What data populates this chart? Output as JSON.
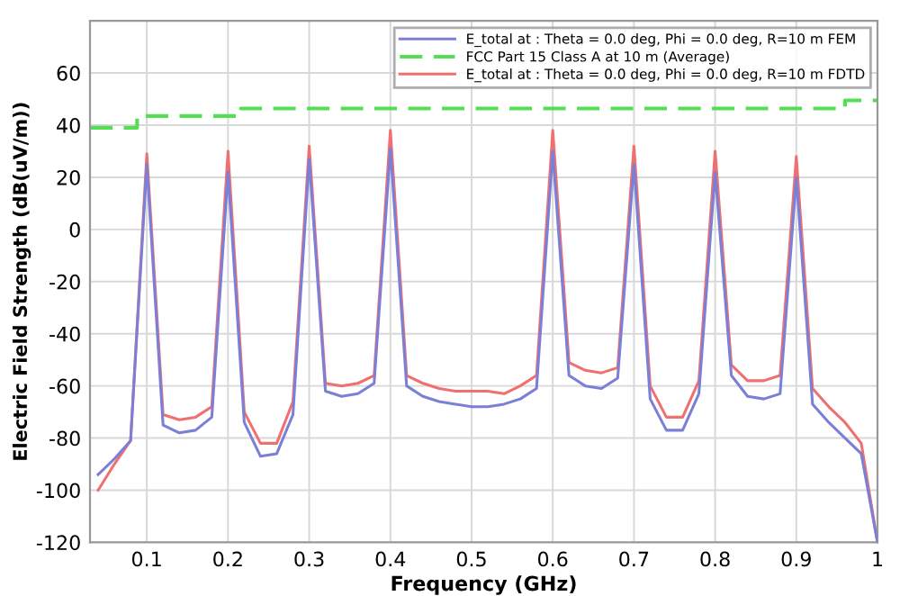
{
  "chart_data": {
    "type": "line",
    "xlabel": "Frequency (GHz)",
    "ylabel": "Electric Field Strength (dB(uV/m))",
    "xlim": [
      0.03,
      1.0
    ],
    "ylim": [
      -120,
      80
    ],
    "xticks": [
      0.1,
      0.2,
      0.3,
      0.4,
      0.5,
      0.6,
      0.7,
      0.8,
      0.9,
      {
        "value": 1.0,
        "label": "1"
      }
    ],
    "yticks": [
      -120,
      -100,
      -80,
      -60,
      -40,
      -20,
      0,
      20,
      40,
      60
    ],
    "grid": true,
    "legend": "top right",
    "marker": "none",
    "series": [
      {
        "name": "E_total at : Theta = 0.0 deg, Phi = 0.0 deg, R=10 m FEM",
        "color": "#7b7fd6",
        "line_style": "solid",
        "x": [
          0.04,
          0.06,
          0.08,
          0.1,
          0.12,
          0.14,
          0.16,
          0.18,
          0.2,
          0.22,
          0.24,
          0.26,
          0.28,
          0.3,
          0.32,
          0.34,
          0.36,
          0.38,
          0.4,
          0.42,
          0.44,
          0.46,
          0.48,
          0.5,
          0.52,
          0.54,
          0.56,
          0.58,
          0.6,
          0.62,
          0.64,
          0.66,
          0.68,
          0.7,
          0.72,
          0.74,
          0.76,
          0.78,
          0.8,
          0.82,
          0.84,
          0.86,
          0.88,
          0.9,
          0.92,
          0.94,
          0.96,
          0.98,
          1.0
        ],
        "values": [
          -94,
          -88,
          -81,
          25,
          -75,
          -78,
          -77,
          -72,
          22,
          -74,
          -87,
          -86,
          -71,
          27,
          -62,
          -64,
          -63,
          -59,
          31,
          -60,
          -64,
          -66,
          -67,
          -68,
          -68,
          -67,
          -65,
          -61,
          30,
          -56,
          -60,
          -61,
          -57,
          25,
          -65,
          -77,
          -77,
          -63,
          22,
          -56,
          -64,
          -65,
          -63,
          20,
          -67,
          -74,
          -80,
          -86,
          -120
        ]
      },
      {
        "name": "FCC Part 15 Class A at 10 m (Average)",
        "type": "step",
        "color": "#55dd55",
        "line_style": "dashed",
        "x": [
          0.03,
          0.088,
          0.216,
          0.96,
          1.0
        ],
        "values": [
          39,
          43.5,
          46.4,
          49.5,
          49.5
        ]
      },
      {
        "name": "E_total at : Theta = 0.0 deg, Phi = 0.0 deg, R=10 m FDTD",
        "color": "#f07070",
        "line_style": "solid",
        "x": [
          0.04,
          0.06,
          0.08,
          0.1,
          0.12,
          0.14,
          0.16,
          0.18,
          0.2,
          0.22,
          0.24,
          0.26,
          0.28,
          0.3,
          0.32,
          0.34,
          0.36,
          0.38,
          0.4,
          0.42,
          0.44,
          0.46,
          0.48,
          0.5,
          0.52,
          0.54,
          0.56,
          0.58,
          0.6,
          0.62,
          0.64,
          0.66,
          0.68,
          0.7,
          0.72,
          0.74,
          0.76,
          0.78,
          0.8,
          0.82,
          0.84,
          0.86,
          0.88,
          0.9,
          0.92,
          0.94,
          0.96,
          0.98,
          1.0
        ],
        "values": [
          -100,
          -90,
          -81,
          29,
          -71,
          -73,
          -72,
          -68,
          30,
          -70,
          -82,
          -82,
          -66,
          32,
          -59,
          -60,
          -59,
          -56,
          38,
          -56,
          -59,
          -61,
          -62,
          -62,
          -62,
          -63,
          -60,
          -56,
          38,
          -51,
          -54,
          -55,
          -53,
          32,
          -60,
          -72,
          -72,
          -58,
          30,
          -52,
          -58,
          -58,
          -56,
          28,
          -61,
          -68,
          -74,
          -82,
          -120
        ]
      }
    ]
  }
}
